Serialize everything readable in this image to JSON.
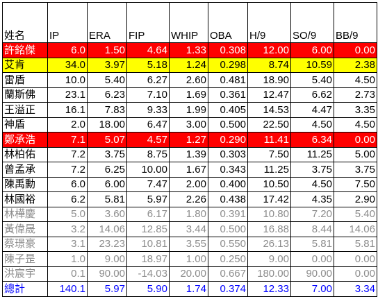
{
  "headers": [
    "姓名",
    "IP",
    "ERA",
    "FIP",
    "WHIP",
    "OBA",
    "H/9",
    "SO/9",
    "BB/9"
  ],
  "colors": {
    "highlight_red": "#ff0000",
    "highlight_yellow": "#ffff00",
    "dim_text": "#8c8c8c",
    "total_text": "#0000ff"
  },
  "rows": [
    {
      "style": "hl-red",
      "cells": [
        "許銘傑",
        "6.0",
        "1.50",
        "4.64",
        "1.33",
        "0.308",
        "12.00",
        "6.00",
        "0.00"
      ]
    },
    {
      "style": "hl-yellow",
      "cells": [
        "艾肯",
        "34.0",
        "3.97",
        "5.18",
        "1.24",
        "0.298",
        "8.74",
        "10.59",
        "2.38"
      ]
    },
    {
      "style": "normal",
      "cells": [
        "雷盾",
        "10.0",
        "5.40",
        "6.27",
        "2.60",
        "0.481",
        "18.90",
        "5.40",
        "4.50"
      ]
    },
    {
      "style": "normal",
      "cells": [
        "蘭斯佛",
        "23.1",
        "6.23",
        "7.10",
        "1.69",
        "0.361",
        "12.47",
        "6.62",
        "2.73"
      ]
    },
    {
      "style": "normal",
      "cells": [
        "王溢正",
        "16.1",
        "7.83",
        "9.33",
        "1.99",
        "0.405",
        "14.53",
        "4.47",
        "3.35"
      ]
    },
    {
      "style": "normal",
      "cells": [
        "神盾",
        "2.0",
        "18.00",
        "6.47",
        "3.00",
        "0.500",
        "22.50",
        "4.50",
        "4.50"
      ]
    },
    {
      "style": "hl-red",
      "cells": [
        "鄭承浩",
        "7.1",
        "5.07",
        "4.57",
        "1.27",
        "0.290",
        "11.41",
        "6.34",
        "0.00"
      ]
    },
    {
      "style": "normal",
      "cells": [
        "林柏佑",
        "7.2",
        "3.75",
        "8.75",
        "1.39",
        "0.303",
        "7.50",
        "11.25",
        "5.00"
      ]
    },
    {
      "style": "normal",
      "cells": [
        "曾孟承",
        "7.2",
        "6.25",
        "10.00",
        "1.67",
        "0.343",
        "11.25",
        "3.75",
        "3.75"
      ]
    },
    {
      "style": "normal",
      "cells": [
        "陳禹勳",
        "6.0",
        "6.00",
        "7.47",
        "2.00",
        "0.400",
        "10.50",
        "4.50",
        "7.50"
      ]
    },
    {
      "style": "normal",
      "cells": [
        "林國裕",
        "6.2",
        "5.81",
        "5.97",
        "2.26",
        "0.438",
        "17.42",
        "4.35",
        "2.90"
      ]
    },
    {
      "style": "dim",
      "cells": [
        "林樺慶",
        "5.0",
        "3.60",
        "6.17",
        "1.80",
        "0.391",
        "10.80",
        "7.20",
        "5.40"
      ]
    },
    {
      "style": "dim",
      "cells": [
        "黃偉晟",
        "3.2",
        "14.06",
        "12.85",
        "3.44",
        "0.500",
        "16.88",
        "8.44",
        "14.06"
      ]
    },
    {
      "style": "dim",
      "cells": [
        "蔡璟豪",
        "3.1",
        "23.23",
        "10.81",
        "3.55",
        "0.550",
        "26.13",
        "5.81",
        "5.81"
      ]
    },
    {
      "style": "dim",
      "cells": [
        "陳子昰",
        "1.0",
        "9.00",
        "18.97",
        "1.00",
        "0.250",
        "9.00",
        "0.00",
        "0.00"
      ]
    },
    {
      "style": "dim",
      "cells": [
        "洪宸宇",
        "0.1",
        "90.00",
        "-14.03",
        "20.00",
        "0.667",
        "180.00",
        "90.00",
        "0.00"
      ]
    },
    {
      "style": "total",
      "cells": [
        "總計",
        "140.1",
        "5.97",
        "5.90",
        "1.74",
        "0.374",
        "12.33",
        "7.00",
        "3.34"
      ]
    }
  ]
}
